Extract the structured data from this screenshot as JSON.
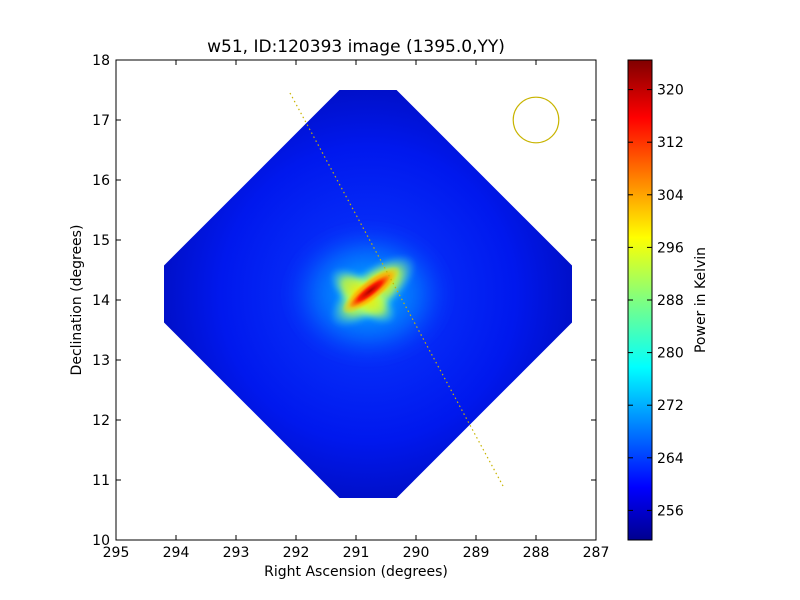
{
  "chart_data": {
    "type": "heatmap",
    "title": "w51, ID:120393 image (1395.0,YY)",
    "xlabel": "Right Ascension (degrees)",
    "ylabel": "Declination (degrees)",
    "xlim": [
      295,
      287
    ],
    "ylim": [
      10,
      18
    ],
    "x_ticks": [
      295,
      294,
      293,
      292,
      291,
      290,
      289,
      288,
      287
    ],
    "y_ticks": [
      10,
      11,
      12,
      13,
      14,
      15,
      16,
      17,
      18
    ],
    "x_tick_labels": [
      "295",
      "294",
      "293",
      "292",
      "291",
      "290",
      "289",
      "288",
      "287"
    ],
    "y_tick_labels": [
      "10",
      "11",
      "12",
      "13",
      "14",
      "15",
      "16",
      "17",
      "18"
    ],
    "colorscale": "jet",
    "colorbar": {
      "label": "Power in Kelvin",
      "range": [
        251.5,
        324.5
      ],
      "ticks": [
        256,
        264,
        272,
        280,
        288,
        296,
        304,
        312,
        320
      ],
      "tick_labels": [
        "256",
        "264",
        "272",
        "280",
        "288",
        "296",
        "304",
        "312",
        "320"
      ]
    },
    "map": {
      "center": [
        290.8,
        14.1
      ],
      "half_width_deg": 3.4,
      "background_kelvin": 257,
      "bright_source": {
        "center": [
          290.8,
          14.1
        ],
        "peak_kelvin": 322
      }
    },
    "beam_circle": {
      "center": [
        288.0,
        17.0
      ],
      "radius_deg": 0.38,
      "color": "#c8b400"
    },
    "scan_line": {
      "start": [
        292.1,
        17.45
      ],
      "end": [
        288.55,
        10.9
      ],
      "color": "#c8b400",
      "style": "dotted"
    }
  }
}
